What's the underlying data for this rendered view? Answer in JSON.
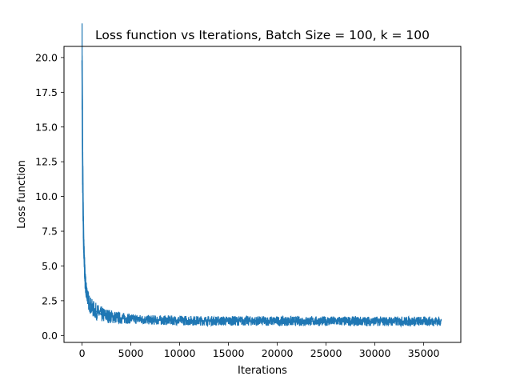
{
  "chart_data": {
    "type": "line",
    "title": "Loss function vs Iterations, Batch Size = 100, k = 100",
    "xlabel": "Iterations",
    "ylabel": "Loss function",
    "xlim": [
      -1850,
      38800
    ],
    "ylim": [
      -0.5,
      20.8
    ],
    "xticks": [
      0,
      5000,
      10000,
      15000,
      20000,
      25000,
      30000,
      35000
    ],
    "xtick_labels": [
      "0",
      "5000",
      "10000",
      "15000",
      "20000",
      "25000",
      "30000",
      "35000"
    ],
    "yticks": [
      0.0,
      2.5,
      5.0,
      7.5,
      10.0,
      12.5,
      15.0,
      17.5,
      20.0
    ],
    "ytick_labels": [
      "0.0",
      "2.5",
      "5.0",
      "7.5",
      "10.0",
      "12.5",
      "15.0",
      "17.5",
      "20.0"
    ],
    "grid": false,
    "legend": "none",
    "series": [
      {
        "color": "#1f77b4",
        "x": [
          0,
          20,
          50,
          100,
          150,
          200,
          300,
          400,
          500,
          700,
          1000,
          1500,
          2000,
          3000,
          4000,
          5000,
          6000,
          7000,
          8000,
          10000,
          12000,
          14000,
          16000,
          18000,
          20000,
          22000,
          24000,
          26000,
          28000,
          30000,
          32000,
          34000,
          36000,
          36800
        ],
        "y": [
          19.8,
          17.8,
          13.0,
          9.5,
          7.2,
          5.8,
          4.2,
          3.4,
          2.9,
          2.4,
          2.0,
          1.7,
          1.5,
          1.35,
          1.25,
          1.2,
          1.15,
          1.12,
          1.1,
          1.08,
          1.06,
          1.05,
          1.05,
          1.04,
          1.04,
          1.03,
          1.03,
          1.03,
          1.02,
          1.02,
          1.02,
          1.02,
          1.02,
          1.02
        ]
      }
    ]
  }
}
